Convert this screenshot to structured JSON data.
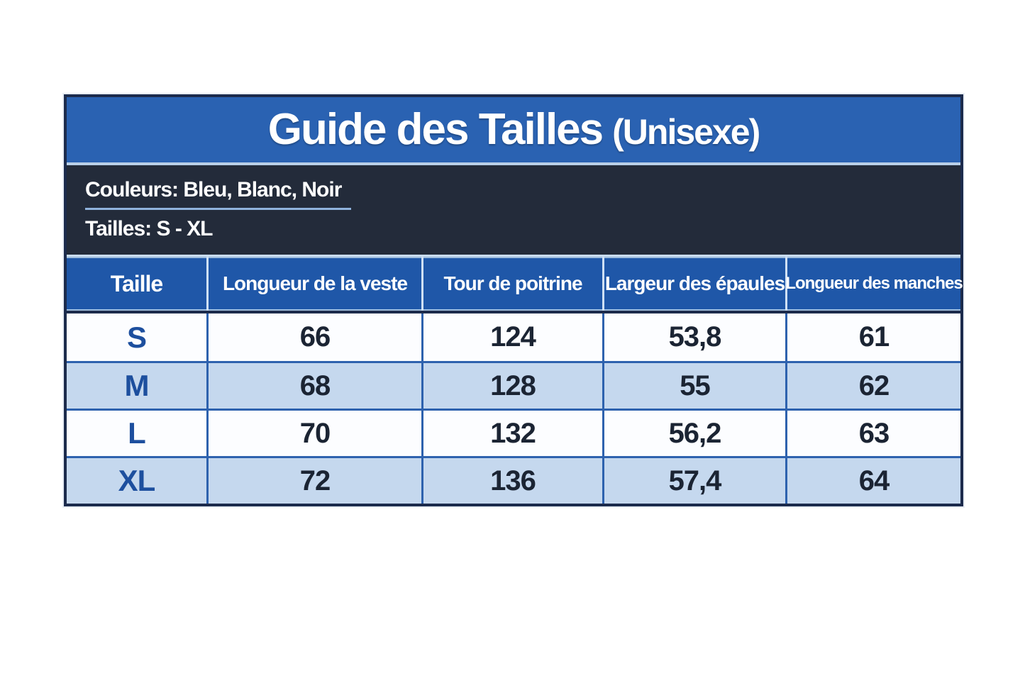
{
  "size_guide": {
    "title": "Guide des Tailles",
    "title_suffix": "(Unisexe)",
    "colors_label": "Couleurs: Bleu, Blanc, Noir",
    "sizes_label": "Tailles: S - XL",
    "columns": [
      "Taille",
      "Longueur de la veste",
      "Tour de poitrine",
      "Largeur des épaules",
      "Longueur des manches"
    ],
    "rows": [
      {
        "cells": [
          "S",
          "66",
          "124",
          "53,8",
          "61"
        ]
      },
      {
        "cells": [
          "M",
          "68",
          "128",
          "55",
          "62"
        ]
      },
      {
        "cells": [
          "L",
          "70",
          "132",
          "56,2",
          "63"
        ]
      },
      {
        "cells": [
          "XL",
          "72",
          "136",
          "57,4",
          "64"
        ]
      }
    ],
    "colors": {
      "banner_blue": "#2a62b2",
      "header_blue": "#1f57a8",
      "dark_section": "#232b3a",
      "row_white": "#fcfdff",
      "row_light_blue": "#c5d8ee",
      "grid_border": "#2e62ae",
      "outer_border": "#1c2b4c",
      "light_separator": "#b9cfe8",
      "size_letter": "#1d4f9e",
      "value_text": "#1b2433"
    }
  },
  "chart_data": {
    "type": "table",
    "title": "Guide des Tailles (Unisexe)",
    "subtitle_lines": [
      "Couleurs: Bleu, Blanc, Noir",
      "Tailles: S - XL"
    ],
    "columns": [
      "Taille",
      "Longueur de la veste",
      "Tour de poitrine",
      "Largeur des épaules",
      "Longueur des manches"
    ],
    "rows": [
      [
        "S",
        "66",
        "124",
        "53,8",
        "61"
      ],
      [
        "M",
        "68",
        "128",
        "55",
        "62"
      ],
      [
        "L",
        "70",
        "132",
        "56,2",
        "63"
      ],
      [
        "XL",
        "72",
        "136",
        "57,4",
        "64"
      ]
    ],
    "units_implied": "cm",
    "layout": "header-banner + info-band + 5-column table, alternating white/light-blue rows"
  }
}
